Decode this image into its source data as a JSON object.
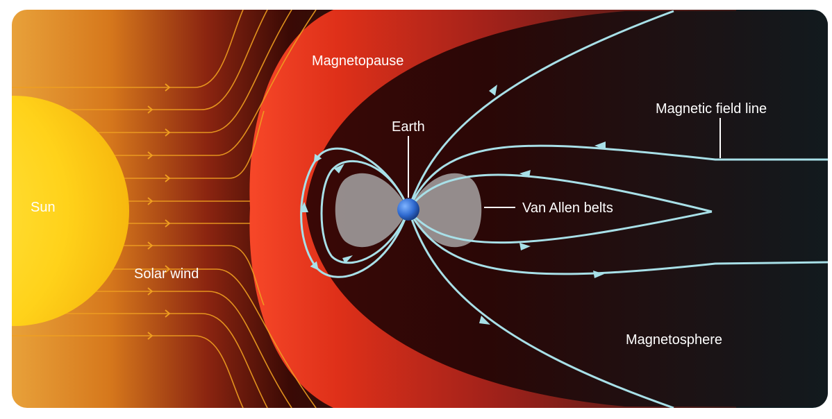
{
  "labels": {
    "magnetopause": "Magnetopause",
    "earth": "Earth",
    "magnetic_field_line": "Magnetic field line",
    "sun": "Sun",
    "van_allen_belts": "Van Allen belts",
    "solar_wind": "Solar wind",
    "magnetosphere": "Magnetosphere"
  },
  "colors": {
    "frame_background": "#0f1d24",
    "frame_border": "#ffffff",
    "sun": "#ffd21a",
    "solar_wind_lines": "#f0a020",
    "magnetopause_glow": "#e83a1e",
    "magnetosphere_dark": "#3a0806",
    "field_lines": "#a8e0e8",
    "van_allen_belts": "#9a9494",
    "earth": "#2f6ad0"
  }
}
